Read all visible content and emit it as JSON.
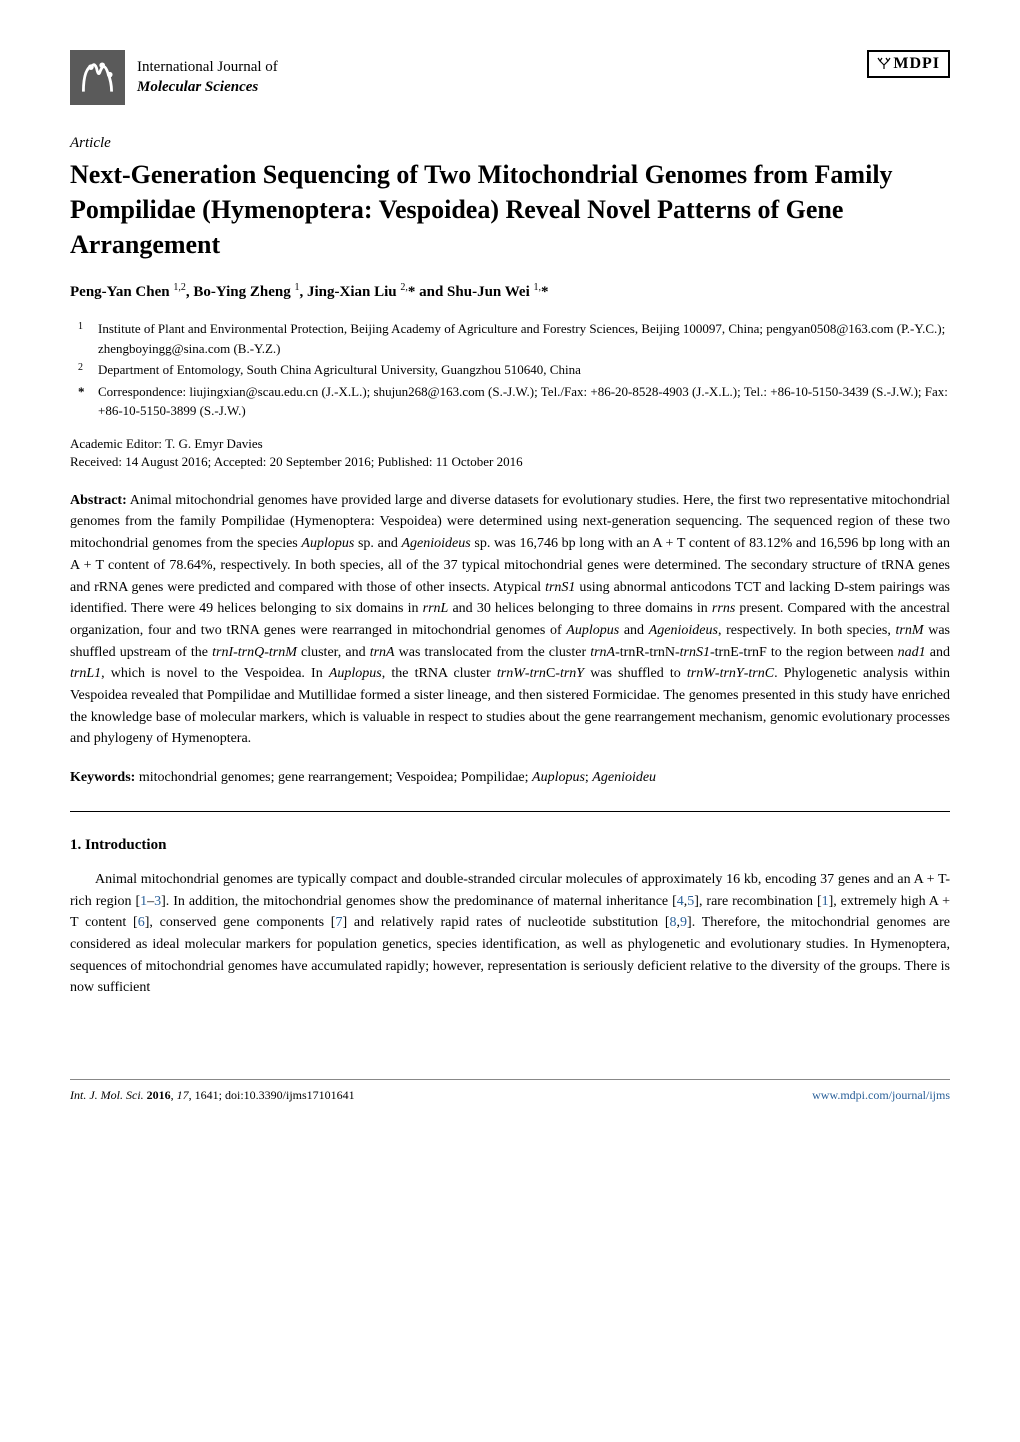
{
  "journal": {
    "line1": "International Journal of",
    "line2": "Molecular Sciences"
  },
  "publisher": "MDPI",
  "article_type": "Article",
  "title": "Next-Generation Sequencing of Two Mitochondrial Genomes from Family Pompilidae (Hymenoptera: Vespoidea) Reveal Novel Patterns of Gene Arrangement",
  "authors_html": "Peng-Yan Chen <sup>1,2</sup>, Bo-Ying Zheng <sup>1</sup>, Jing-Xian Liu <sup>2,</sup>* and Shu-Jun Wei <sup>1,</sup>*",
  "affiliations": [
    {
      "num": "1",
      "text": "Institute of Plant and Environmental Protection, Beijing Academy of Agriculture and Forestry Sciences, Beijing 100097, China; pengyan0508@163.com (P.-Y.C.); zhengboyingg@sina.com (B.-Y.Z.)"
    },
    {
      "num": "2",
      "text": "Department of Entomology, South China Agricultural University, Guangzhou 510640, China"
    }
  ],
  "correspondence": "Correspondence: liujingxian@scau.edu.cn (J.-X.L.); shujun268@163.com (S.-J.W.); Tel./Fax: +86-20-8528-4903 (J.-X.L.); Tel.: +86-10-5150-3439 (S.-J.W.); Fax: +86-10-5150-3899 (S.-J.W.)",
  "editor": "Academic Editor: T. G. Emyr Davies",
  "dates": "Received: 14 August 2016; Accepted: 20 September 2016; Published: 11 October 2016",
  "abstract_label": "Abstract:",
  "abstract": "Animal mitochondrial genomes have provided large and diverse datasets for evolutionary studies. Here, the first two representative mitochondrial genomes from the family Pompilidae (Hymenoptera: Vespoidea) were determined using next-generation sequencing. The sequenced region of these two mitochondrial genomes from the species Auplopus sp. and Agenioideus sp. was 16,746 bp long with an A + T content of 83.12% and 16,596 bp long with an A + T content of 78.64%, respectively. In both species, all of the 37 typical mitochondrial genes were determined. The secondary structure of tRNA genes and rRNA genes were predicted and compared with those of other insects. Atypical trnS1 using abnormal anticodons TCT and lacking D-stem pairings was identified. There were 49 helices belonging to six domains in rrnL and 30 helices belonging to three domains in rrns present. Compared with the ancestral organization, four and two tRNA genes were rearranged in mitochondrial genomes of Auplopus and Agenioideus, respectively. In both species, trnM was shuffled upstream of the trnI-trnQ-trnM cluster, and trnA was translocated from the cluster trnA-trnR-trnN-trnS1-trnE-trnF to the region between nad1 and trnL1, which is novel to the Vespoidea. In Auplopus, the tRNA cluster trnW-trnC-trnY was shuffled to trnW-trnY-trnC. Phylogenetic analysis within Vespoidea revealed that Pompilidae and Mutillidae formed a sister lineage, and then sistered Formicidae. The genomes presented in this study have enriched the knowledge base of molecular markers, which is valuable in respect to studies about the gene rearrangement mechanism, genomic evolutionary processes and phylogeny of Hymenoptera.",
  "keywords_label": "Keywords:",
  "keywords": "mitochondrial genomes; gene rearrangement; Vespoidea; Pompilidae; Auplopus; Agenioideu",
  "section1": {
    "heading": "1.  Introduction",
    "paragraph": "Animal mitochondrial genomes are typically compact and double-stranded circular molecules of approximately 16 kb, encoding 37 genes and an A + T-rich region [1–3]. In addition, the mitochondrial genomes show the predominance of maternal inheritance [4,5], rare recombination [1], extremely high A + T content [6], conserved gene components [7] and relatively rapid rates of nucleotide substitution [8,9]. Therefore, the mitochondrial genomes are considered as ideal molecular markers for population genetics, species identification, as well as phylogenetic and evolutionary studies. In Hymenoptera, sequences of mitochondrial genomes have accumulated rapidly; however, representation is seriously deficient relative to the diversity of the groups. There is now sufficient"
  },
  "footer": {
    "left_italic": "Int. J. Mol. Sci.",
    "left_rest": " 2016, 17, 1641; doi:10.3390/ijms17101641",
    "right": "www.mdpi.com/journal/ijms"
  },
  "colors": {
    "link": "#2a6099",
    "text": "#000000",
    "background": "#ffffff",
    "logo_bg": "#5a5a5a"
  }
}
